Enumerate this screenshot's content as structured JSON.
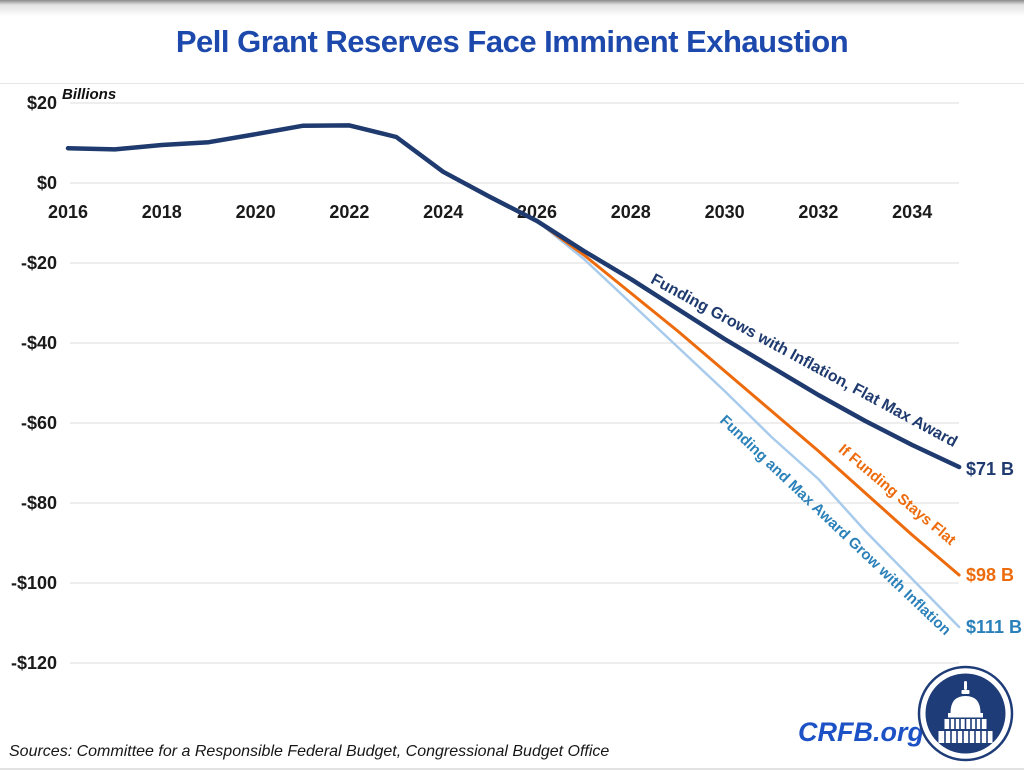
{
  "title": "Pell Grant Reserves Face Imminent Exhaustion",
  "unit_label": "Billions",
  "footer": {
    "sources": "Sources: Committee for a Responsible Federal Budget, Congressional Budget Office",
    "site": "CRFB.org"
  },
  "colors": {
    "title_blue": "#1e49ac",
    "navy_line": "#1f3a6e",
    "orange_line": "#ed6b0c",
    "light_blue_line": "#a8cbec",
    "teal_label": "#2a80b9",
    "gridline": "#dcdcdc",
    "axis_text": "#1a1a1a",
    "crfb_blue": "#1c52c5",
    "logo_navy": "#1e3c78"
  },
  "chart_data": {
    "type": "line",
    "title": "Pell Grant Reserves Face Imminent Exhaustion",
    "ylabel": "Billions",
    "xlabel": "",
    "grid": "horizontal only",
    "legend_position": "inline rotated labels on lines",
    "x_range": [
      2016,
      2035
    ],
    "ylim": [
      -120,
      20
    ],
    "x": [
      2016,
      2017,
      2018,
      2019,
      2020,
      2021,
      2022,
      2023,
      2024,
      2025,
      2026,
      2027,
      2028,
      2029,
      2030,
      2031,
      2032,
      2033,
      2034,
      2035
    ],
    "x_ticks": [
      2016,
      2018,
      2020,
      2022,
      2024,
      2026,
      2028,
      2030,
      2032,
      2034
    ],
    "x_tick_labels": [
      "2016",
      "2018",
      "2020",
      "2022",
      "2024",
      "2026",
      "2028",
      "2030",
      "2032",
      "2034"
    ],
    "y_ticks": [
      20,
      0,
      -20,
      -40,
      -60,
      -80,
      -100,
      -120
    ],
    "y_tick_labels": [
      "$20",
      "$0",
      "-$20",
      "-$40",
      "-$60",
      "-$80",
      "-$100",
      "-$120"
    ],
    "series": [
      {
        "name": "Funding Grows with Inflation, Flat Max Award",
        "color": "#1f3a6e",
        "stroke_width": 4.5,
        "end_label": "$71 B",
        "end_value": -71,
        "values": [
          8.7,
          8.4,
          9.5,
          10.2,
          12.2,
          14.3,
          14.4,
          11.5,
          2.8,
          -3.5,
          -9.5,
          -17,
          -24,
          -31.5,
          -39,
          -46,
          -53,
          -59.5,
          -65.5,
          -71
        ]
      },
      {
        "name": "If Funding Stays Flat",
        "color": "#ed6b0c",
        "stroke_width": 3,
        "end_label": "$98 B",
        "end_value": -98,
        "values": [
          null,
          null,
          null,
          null,
          null,
          null,
          null,
          null,
          null,
          null,
          -9.5,
          -18,
          -27.5,
          -37,
          -47,
          -57,
          -67,
          -77.5,
          -88,
          -98
        ]
      },
      {
        "name": "Funding and Max Award Grow with Inflation",
        "color": "#a8cbec",
        "stroke_width": 2.5,
        "end_label": "$111 B",
        "end_value": -111,
        "values": [
          null,
          null,
          null,
          null,
          null,
          null,
          null,
          null,
          null,
          null,
          -9.5,
          -19,
          -30,
          -41,
          -52,
          -63.5,
          -74,
          -87,
          -99,
          -111
        ]
      }
    ]
  }
}
